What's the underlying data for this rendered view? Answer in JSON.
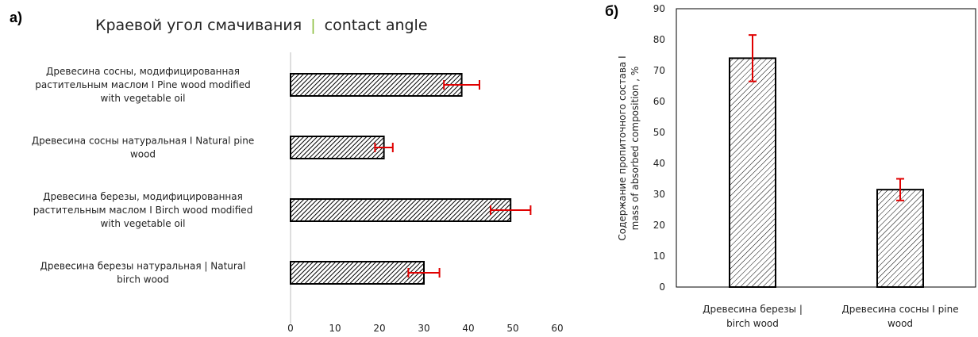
{
  "chart_data": [
    {
      "type": "bar",
      "orientation": "horizontal",
      "panel_label": "а)",
      "title": "Краевой угол смачивания",
      "title_sep": "|",
      "title_en": "contact angle",
      "categories": [
        [
          "Древесина сосны, модифицированная",
          "растительным маслом I Pine wood modified",
          "with vegetable oil"
        ],
        [
          "Древесина сосны натуральная I Natural pine",
          "wood"
        ],
        [
          "Древесина березы, модифицированная",
          "растительным маслом I Birch wood modified",
          "with vegetable oil"
        ],
        [
          "Древесина березы натуральная | Natural",
          "birch wood"
        ]
      ],
      "values": [
        38.5,
        21,
        49.5,
        30
      ],
      "errors": [
        4,
        2,
        4.5,
        3.5
      ],
      "xlim": [
        0,
        60
      ],
      "xticks": [
        "0",
        "10",
        "20",
        "30",
        "40",
        "50",
        "60"
      ],
      "xlabel": "",
      "ylabel": "",
      "bar_fill": "hatch",
      "error_color": "#e00000",
      "grid": false
    },
    {
      "type": "bar",
      "orientation": "vertical",
      "panel_label": "б)",
      "title": "",
      "categories": [
        [
          "Древесина березы |",
          "birch wood"
        ],
        [
          "Древесина сосны I pine",
          "wood"
        ]
      ],
      "values": [
        74,
        31.5
      ],
      "errors": [
        7.5,
        3.5
      ],
      "ylim": [
        0,
        90
      ],
      "yticks": [
        "0",
        "10",
        "20",
        "30",
        "40",
        "50",
        "60",
        "70",
        "80",
        "90"
      ],
      "ylabel": [
        "Содержание пропиточного состава I",
        "mass of absorbed composition , %"
      ],
      "xlabel": "",
      "bar_fill": "hatch",
      "error_color": "#e00000",
      "grid": false
    }
  ]
}
